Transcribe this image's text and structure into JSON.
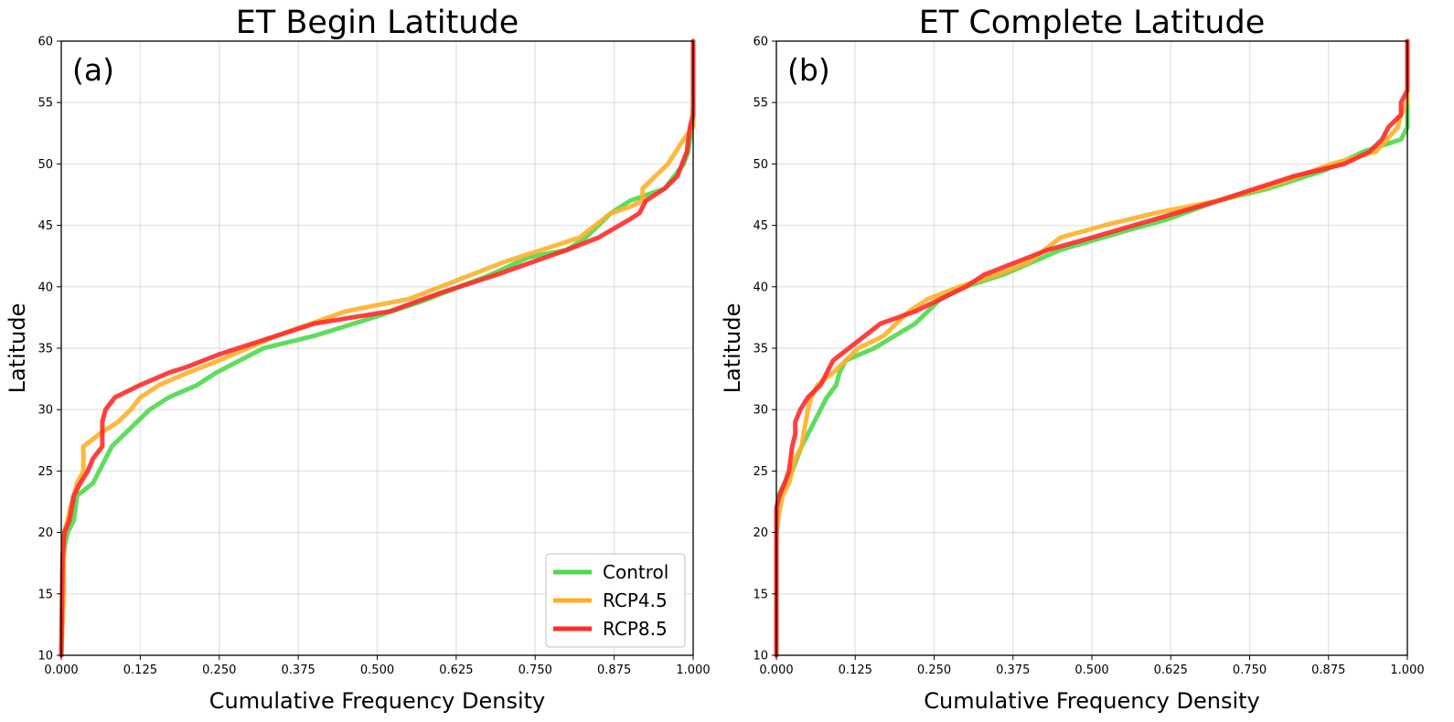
{
  "chart_data": [
    {
      "type": "line",
      "title": "ET Begin Latitude",
      "panel_label": "(a)",
      "xlabel": "Cumulative Frequency Density",
      "ylabel": "Latitude",
      "xlim": [
        0,
        1
      ],
      "ylim": [
        10,
        60
      ],
      "x_ticks": [
        "0.000",
        "0.125",
        "0.250",
        "0.375",
        "0.500",
        "0.625",
        "0.750",
        "0.875",
        "1.000"
      ],
      "y_ticks": [
        "10",
        "15",
        "20",
        "25",
        "30",
        "35",
        "40",
        "45",
        "50",
        "55",
        "60"
      ],
      "grid": true,
      "legend": "lower-right",
      "series": [
        {
          "name": "Control",
          "color": "#4cd94c",
          "points": [
            [
              0,
              10
            ],
            [
              0.002,
              17
            ],
            [
              0.006,
              19
            ],
            [
              0.01,
              20
            ],
            [
              0.02,
              21
            ],
            [
              0.025,
              23
            ],
            [
              0.05,
              24
            ],
            [
              0.08,
              27
            ],
            [
              0.12,
              29
            ],
            [
              0.14,
              30
            ],
            [
              0.17,
              31
            ],
            [
              0.215,
              32
            ],
            [
              0.245,
              33
            ],
            [
              0.32,
              35
            ],
            [
              0.4,
              36
            ],
            [
              0.5,
              37.6
            ],
            [
              0.57,
              38.8
            ],
            [
              0.63,
              40
            ],
            [
              0.68,
              41
            ],
            [
              0.74,
              42.4
            ],
            [
              0.8,
              43
            ],
            [
              0.83,
              44
            ],
            [
              0.85,
              45
            ],
            [
              0.87,
              46
            ],
            [
              0.9,
              47
            ],
            [
              0.955,
              48
            ],
            [
              0.985,
              50
            ],
            [
              0.992,
              51
            ],
            [
              0.998,
              53
            ],
            [
              1,
              55
            ],
            [
              1,
              60
            ]
          ]
        },
        {
          "name": "RCP4.5",
          "color": "#fdb028",
          "points": [
            [
              0,
              10
            ],
            [
              0.004,
              15
            ],
            [
              0.004,
              20
            ],
            [
              0.01,
              21
            ],
            [
              0.014,
              22
            ],
            [
              0.02,
              23
            ],
            [
              0.025,
              24
            ],
            [
              0.035,
              25
            ],
            [
              0.035,
              27
            ],
            [
              0.06,
              28
            ],
            [
              0.09,
              29
            ],
            [
              0.11,
              30
            ],
            [
              0.125,
              31
            ],
            [
              0.155,
              32
            ],
            [
              0.2,
              33
            ],
            [
              0.25,
              34
            ],
            [
              0.34,
              36
            ],
            [
              0.45,
              38
            ],
            [
              0.55,
              39
            ],
            [
              0.6,
              40
            ],
            [
              0.65,
              41
            ],
            [
              0.7,
              42
            ],
            [
              0.76,
              43
            ],
            [
              0.82,
              44
            ],
            [
              0.87,
              46
            ],
            [
              0.9,
              46.5
            ],
            [
              0.92,
              47
            ],
            [
              0.92,
              48
            ],
            [
              0.96,
              50
            ],
            [
              0.985,
              52
            ],
            [
              1,
              53
            ],
            [
              1,
              60
            ]
          ]
        },
        {
          "name": "RCP8.5",
          "color": "#ff2a2a",
          "points": [
            [
              0,
              10
            ],
            [
              0.002,
              18
            ],
            [
              0.005,
              20
            ],
            [
              0.013,
              21
            ],
            [
              0.02,
              23
            ],
            [
              0.03,
              24
            ],
            [
              0.042,
              25
            ],
            [
              0.05,
              26
            ],
            [
              0.065,
              27
            ],
            [
              0.065,
              29
            ],
            [
              0.07,
              30
            ],
            [
              0.085,
              31
            ],
            [
              0.125,
              32
            ],
            [
              0.17,
              33
            ],
            [
              0.2,
              33.5
            ],
            [
              0.25,
              34.5
            ],
            [
              0.34,
              36
            ],
            [
              0.4,
              37
            ],
            [
              0.52,
              38
            ],
            [
              0.6,
              39.5
            ],
            [
              0.69,
              41
            ],
            [
              0.8,
              43
            ],
            [
              0.85,
              44
            ],
            [
              0.9,
              45.5
            ],
            [
              0.915,
              46
            ],
            [
              0.925,
              47
            ],
            [
              0.955,
              48
            ],
            [
              0.975,
              49
            ],
            [
              0.99,
              51
            ],
            [
              0.995,
              53
            ],
            [
              1,
              54
            ],
            [
              1,
              60
            ]
          ]
        }
      ]
    },
    {
      "type": "line",
      "title": "ET Complete Latitude",
      "panel_label": "(b)",
      "xlabel": "Cumulative Frequency Density",
      "ylabel": "Latitude",
      "xlim": [
        0,
        1
      ],
      "ylim": [
        10,
        60
      ],
      "x_ticks": [
        "0.000",
        "0.125",
        "0.250",
        "0.375",
        "0.500",
        "0.625",
        "0.750",
        "0.875",
        "1.000"
      ],
      "y_ticks": [
        "10",
        "15",
        "20",
        "25",
        "30",
        "35",
        "40",
        "45",
        "50",
        "55",
        "60"
      ],
      "grid": true,
      "series": [
        {
          "name": "Control",
          "color": "#4cd94c",
          "points": [
            [
              0,
              10
            ],
            [
              0,
              21
            ],
            [
              0.003,
              23
            ],
            [
              0.013,
              24
            ],
            [
              0.025,
              25
            ],
            [
              0.04,
              27
            ],
            [
              0.05,
              28
            ],
            [
              0.06,
              29
            ],
            [
              0.07,
              30
            ],
            [
              0.08,
              31
            ],
            [
              0.095,
              32
            ],
            [
              0.1,
              33
            ],
            [
              0.11,
              34
            ],
            [
              0.155,
              35
            ],
            [
              0.22,
              37
            ],
            [
              0.26,
              39
            ],
            [
              0.3,
              40
            ],
            [
              0.36,
              41
            ],
            [
              0.45,
              43
            ],
            [
              0.55,
              44.5
            ],
            [
              0.62,
              45.5
            ],
            [
              0.7,
              47
            ],
            [
              0.78,
              48
            ],
            [
              0.87,
              49.5
            ],
            [
              0.93,
              51
            ],
            [
              0.99,
              52
            ],
            [
              1,
              53
            ],
            [
              1,
              60
            ]
          ]
        },
        {
          "name": "RCP4.5",
          "color": "#fdb028",
          "points": [
            [
              0,
              10
            ],
            [
              0,
              20
            ],
            [
              0.006,
              22
            ],
            [
              0.01,
              23
            ],
            [
              0.02,
              24
            ],
            [
              0.03,
              26
            ],
            [
              0.04,
              27
            ],
            [
              0.043,
              28
            ],
            [
              0.05,
              30
            ],
            [
              0.055,
              31
            ],
            [
              0.065,
              32
            ],
            [
              0.09,
              33
            ],
            [
              0.13,
              35
            ],
            [
              0.17,
              36
            ],
            [
              0.21,
              38
            ],
            [
              0.24,
              39
            ],
            [
              0.29,
              40
            ],
            [
              0.35,
              41
            ],
            [
              0.4,
              42
            ],
            [
              0.45,
              44
            ],
            [
              0.52,
              45
            ],
            [
              0.6,
              46
            ],
            [
              0.7,
              47
            ],
            [
              0.8,
              48.5
            ],
            [
              0.88,
              50
            ],
            [
              0.95,
              51
            ],
            [
              0.985,
              53
            ],
            [
              0.99,
              54
            ],
            [
              1,
              55
            ],
            [
              1,
              60
            ]
          ]
        },
        {
          "name": "RCP8.5",
          "color": "#ff2a2a",
          "points": [
            [
              0,
              10
            ],
            [
              0,
              22
            ],
            [
              0.005,
              23
            ],
            [
              0.013,
              24
            ],
            [
              0.02,
              25
            ],
            [
              0.025,
              27
            ],
            [
              0.03,
              28
            ],
            [
              0.03,
              29
            ],
            [
              0.038,
              30
            ],
            [
              0.05,
              31
            ],
            [
              0.07,
              32
            ],
            [
              0.08,
              33
            ],
            [
              0.09,
              34
            ],
            [
              0.115,
              35
            ],
            [
              0.14,
              36
            ],
            [
              0.165,
              37
            ],
            [
              0.22,
              38
            ],
            [
              0.28,
              39.5
            ],
            [
              0.3,
              40
            ],
            [
              0.33,
              41
            ],
            [
              0.38,
              42
            ],
            [
              0.43,
              43
            ],
            [
              0.5,
              44
            ],
            [
              0.6,
              45.5
            ],
            [
              0.7,
              47
            ],
            [
              0.82,
              49
            ],
            [
              0.9,
              50
            ],
            [
              0.94,
              51
            ],
            [
              0.96,
              52
            ],
            [
              0.97,
              53
            ],
            [
              0.99,
              54
            ],
            [
              0.99,
              55
            ],
            [
              1,
              56
            ],
            [
              1,
              60
            ]
          ]
        }
      ]
    }
  ]
}
